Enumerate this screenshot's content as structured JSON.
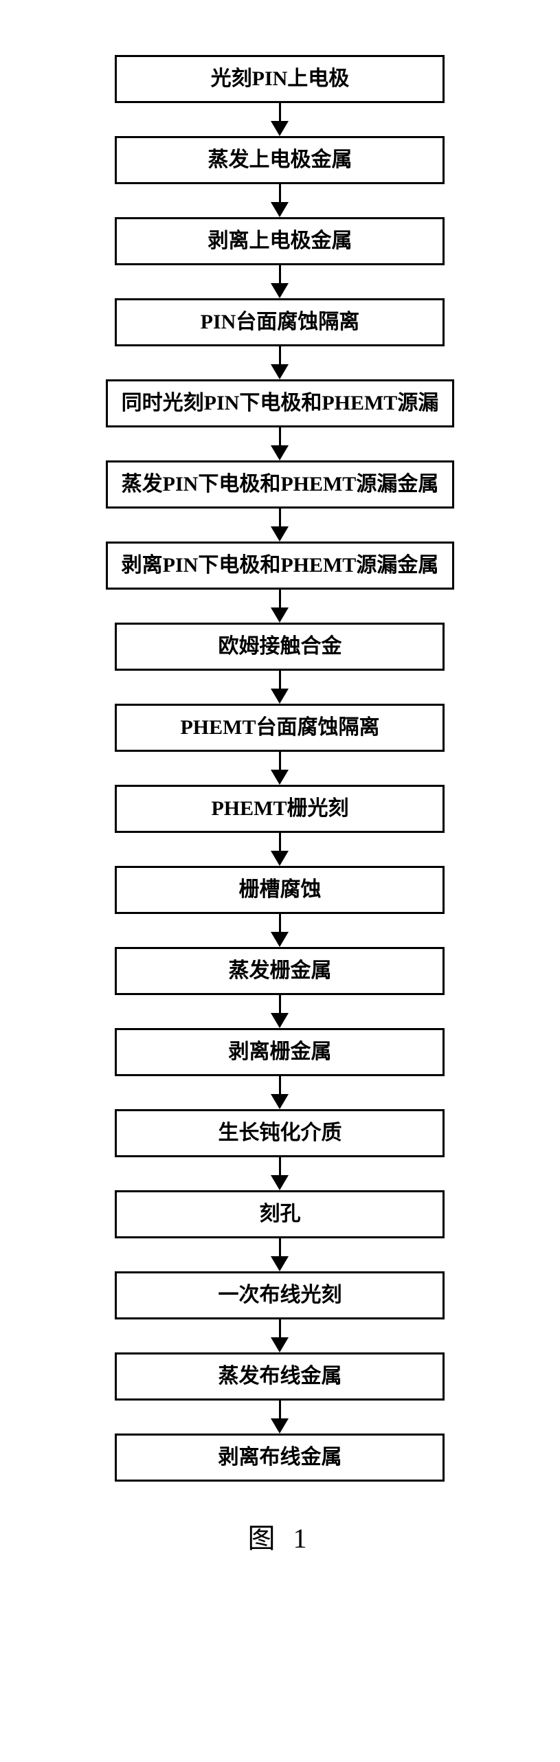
{
  "flowchart": {
    "type": "flowchart",
    "direction": "vertical",
    "box_border_color": "#000000",
    "box_border_width": 3,
    "box_background_color": "#ffffff",
    "box_min_width": 480,
    "box_padding": 14,
    "box_font_size": 30,
    "box_font_weight": "bold",
    "box_text_color": "#000000",
    "arrow_color": "#000000",
    "arrow_line_width": 3,
    "arrow_line_height": 26,
    "arrow_head_width": 26,
    "arrow_head_height": 22,
    "arrow_gap_height": 48,
    "background_color": "#ffffff",
    "steps": [
      {
        "label": "光刻PIN上电极"
      },
      {
        "label": "蒸发上电极金属"
      },
      {
        "label": "剥离上电极金属"
      },
      {
        "label": "PIN台面腐蚀隔离"
      },
      {
        "label": "同时光刻PIN下电极和PHEMT源漏"
      },
      {
        "label": "蒸发PIN下电极和PHEMT源漏金属"
      },
      {
        "label": "剥离PIN下电极和PHEMT源漏金属"
      },
      {
        "label": "欧姆接触合金"
      },
      {
        "label": "PHEMT台面腐蚀隔离"
      },
      {
        "label": "PHEMT栅光刻"
      },
      {
        "label": "栅槽腐蚀"
      },
      {
        "label": "蒸发栅金属"
      },
      {
        "label": "剥离栅金属"
      },
      {
        "label": "生长钝化介质"
      },
      {
        "label": "刻孔"
      },
      {
        "label": "一次布线光刻"
      },
      {
        "label": "蒸发布线金属"
      },
      {
        "label": "剥离布线金属"
      }
    ],
    "figure_label": "图 1",
    "figure_label_fontsize": 40
  }
}
